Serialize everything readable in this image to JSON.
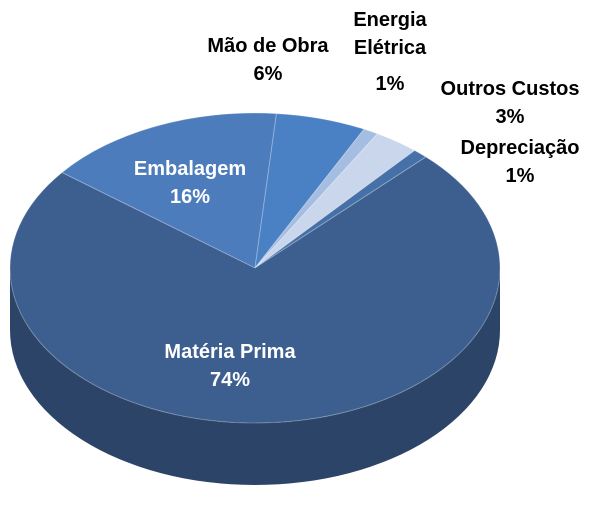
{
  "chart_data": {
    "type": "pie",
    "categories": [
      "Embalagem",
      "Mão de Obra",
      "Energia Elétrica",
      "Outros Custos",
      "Depreciação",
      "Matéria Prima"
    ],
    "values": [
      16,
      6,
      1,
      3,
      1,
      74
    ],
    "value_labels": [
      "16%",
      "6%",
      "1%",
      "3%",
      "1%",
      "74%"
    ],
    "colors": [
      "#4d7cbc",
      "#4a80c4",
      "#a4bde0",
      "#c9d6ec",
      "#4570a8",
      "#3d5f8f"
    ]
  }
}
